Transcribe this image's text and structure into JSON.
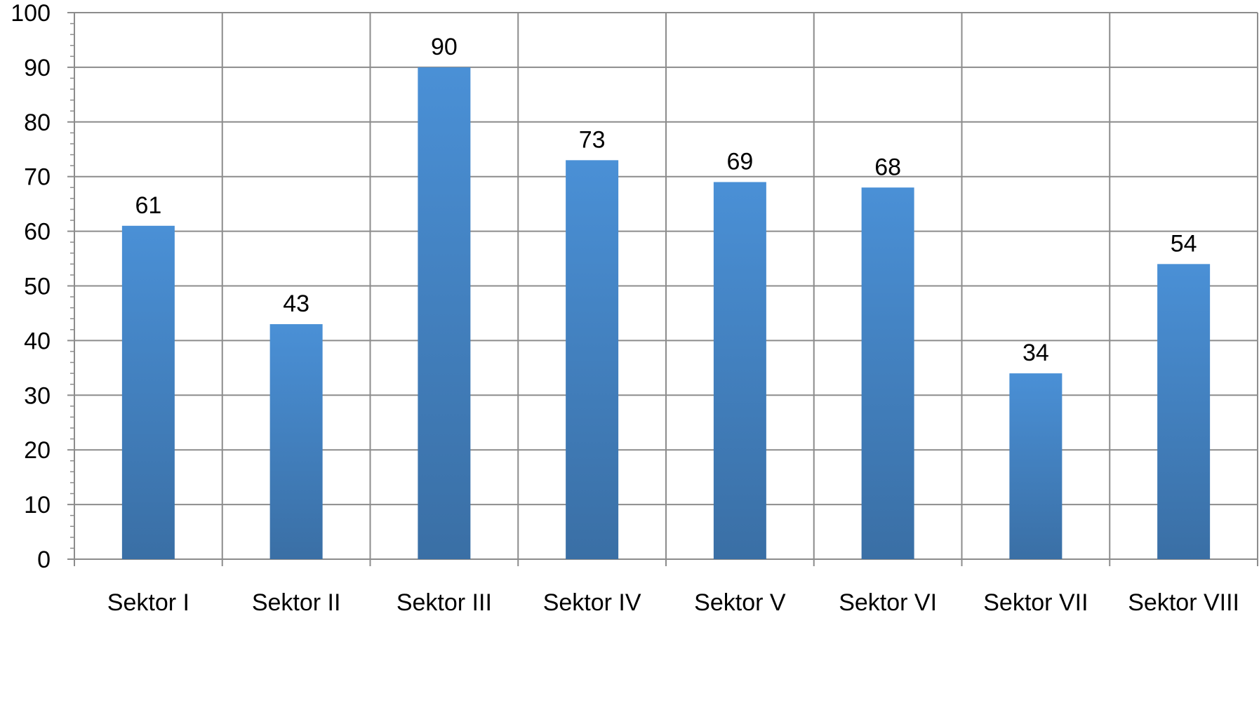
{
  "chart_data": {
    "type": "bar",
    "categories": [
      "Sektor I",
      "Sektor II",
      "Sektor III",
      "Sektor IV",
      "Sektor V",
      "Sektor VI",
      "Sektor VII",
      "Sektor VIII"
    ],
    "values": [
      61,
      43,
      90,
      73,
      69,
      68,
      34,
      54
    ],
    "title": "",
    "xlabel": "",
    "ylabel": "",
    "ylim": [
      0,
      100
    ],
    "y_major_step": 10,
    "y_minor_step": 2,
    "grid": true,
    "data_labels": true,
    "bar_color": "#4A90D6",
    "bar_color_dark": "#3A6FA5",
    "grid_color": "#8C8C8C"
  }
}
